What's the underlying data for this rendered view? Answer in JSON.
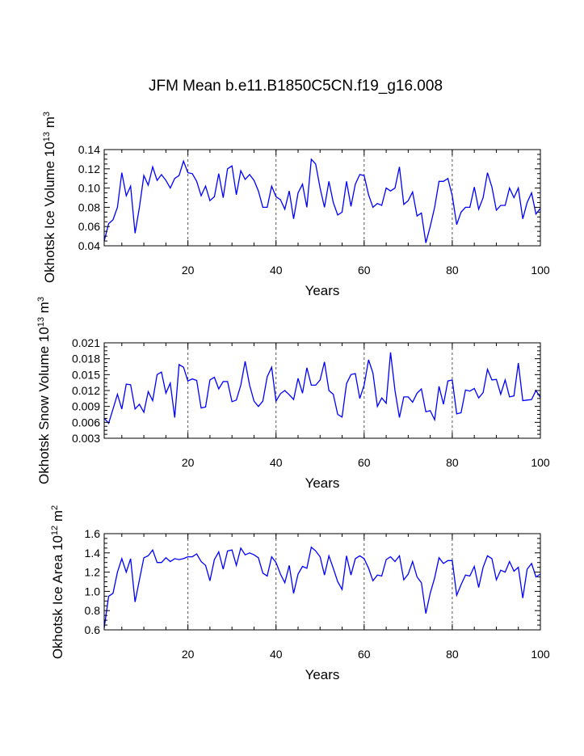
{
  "title": "JFM Mean b.e11.B1850C5CN.f19_g16.008",
  "chart_data": [
    {
      "type": "line",
      "ylabel_main": "Okhotsk Ice Volume 10",
      "ylabel_exp": "13",
      "ylabel_unit": " m",
      "ylabel_unit_exp": "3",
      "xlabel": "Years",
      "xlim": [
        1,
        100
      ],
      "ylim": [
        0.04,
        0.14
      ],
      "yticks": [
        0.04,
        0.06,
        0.08,
        0.1,
        0.12,
        0.14
      ],
      "ytick_labels": [
        "0.04",
        "0.06",
        "0.08",
        "0.10",
        "0.12",
        "0.14"
      ],
      "xticks": [
        20,
        40,
        60,
        80,
        100
      ],
      "xtick_labels": [
        "20",
        "40",
        "60",
        "80",
        "100"
      ],
      "reference_lines_x": [
        20,
        40,
        60,
        80
      ],
      "series": [
        {
          "name": "Okhotsk Ice Volume",
          "x": [
            1,
            2,
            3,
            4,
            5,
            6,
            7,
            8,
            9,
            10,
            11,
            12,
            13,
            14,
            15,
            16,
            17,
            18,
            19,
            20,
            21,
            22,
            23,
            24,
            25,
            26,
            27,
            28,
            29,
            30,
            31,
            32,
            33,
            34,
            35,
            36,
            37,
            38,
            39,
            40,
            41,
            42,
            43,
            44,
            45,
            46,
            47,
            48,
            49,
            50,
            51,
            52,
            53,
            54,
            55,
            56,
            57,
            58,
            59,
            60,
            61,
            62,
            63,
            64,
            65,
            66,
            67,
            68,
            69,
            70,
            71,
            72,
            73,
            74,
            75,
            76,
            77,
            78,
            79,
            80,
            81,
            82,
            83,
            84,
            85,
            86,
            87,
            88,
            89,
            90,
            91,
            92,
            93,
            94,
            95,
            96,
            97,
            98,
            99,
            100
          ],
          "values": [
            0.045,
            0.063,
            0.067,
            0.08,
            0.116,
            0.092,
            0.102,
            0.053,
            0.08,
            0.113,
            0.103,
            0.122,
            0.108,
            0.114,
            0.108,
            0.1,
            0.11,
            0.113,
            0.128,
            0.116,
            0.115,
            0.107,
            0.092,
            0.102,
            0.087,
            0.091,
            0.115,
            0.09,
            0.12,
            0.123,
            0.093,
            0.118,
            0.109,
            0.114,
            0.108,
            0.097,
            0.08,
            0.08,
            0.102,
            0.091,
            0.088,
            0.078,
            0.097,
            0.068,
            0.095,
            0.104,
            0.08,
            0.13,
            0.125,
            0.1,
            0.08,
            0.107,
            0.085,
            0.072,
            0.075,
            0.107,
            0.081,
            0.104,
            0.114,
            0.113,
            0.093,
            0.08,
            0.084,
            0.082,
            0.1,
            0.097,
            0.1,
            0.122,
            0.083,
            0.087,
            0.096,
            0.071,
            0.074,
            0.043,
            0.06,
            0.08,
            0.107,
            0.107,
            0.11,
            0.092,
            0.062,
            0.075,
            0.08,
            0.08,
            0.101,
            0.078,
            0.09,
            0.116,
            0.101,
            0.077,
            0.082,
            0.082,
            0.1,
            0.09,
            0.1,
            0.068,
            0.085,
            0.095,
            0.073,
            0.079
          ]
        }
      ]
    },
    {
      "type": "line",
      "ylabel_main": "Okhotsk Snow Volume 10",
      "ylabel_exp": "13",
      "ylabel_unit": " m",
      "ylabel_unit_exp": "3",
      "xlabel": "Years",
      "xlim": [
        1,
        100
      ],
      "ylim": [
        0.003,
        0.021
      ],
      "yticks": [
        0.003,
        0.006,
        0.009,
        0.012,
        0.015,
        0.018,
        0.021
      ],
      "ytick_labels": [
        "0.003",
        "0.006",
        "0.009",
        "0.012",
        "0.015",
        "0.018",
        "0.021"
      ],
      "xticks": [
        20,
        40,
        60,
        80,
        100
      ],
      "xtick_labels": [
        "20",
        "40",
        "60",
        "80",
        "100"
      ],
      "reference_lines_x": [
        20,
        40,
        60,
        80
      ],
      "series": [
        {
          "name": "Okhotsk Snow Volume",
          "x": [
            1,
            2,
            3,
            4,
            5,
            6,
            7,
            8,
            9,
            10,
            11,
            12,
            13,
            14,
            15,
            16,
            17,
            18,
            19,
            20,
            21,
            22,
            23,
            24,
            25,
            26,
            27,
            28,
            29,
            30,
            31,
            32,
            33,
            34,
            35,
            36,
            37,
            38,
            39,
            40,
            41,
            42,
            43,
            44,
            45,
            46,
            47,
            48,
            49,
            50,
            51,
            52,
            53,
            54,
            55,
            56,
            57,
            58,
            59,
            60,
            61,
            62,
            63,
            64,
            65,
            66,
            67,
            68,
            69,
            70,
            71,
            72,
            73,
            74,
            75,
            76,
            77,
            78,
            79,
            80,
            81,
            82,
            83,
            84,
            85,
            86,
            87,
            88,
            89,
            90,
            91,
            92,
            93,
            94,
            95,
            96,
            97,
            98,
            99,
            100
          ],
          "values": [
            0.0068,
            0.0058,
            0.0085,
            0.0113,
            0.0085,
            0.0132,
            0.0131,
            0.0085,
            0.0094,
            0.0079,
            0.0118,
            0.0101,
            0.015,
            0.0155,
            0.0115,
            0.0134,
            0.0069,
            0.0169,
            0.0164,
            0.0138,
            0.0142,
            0.0139,
            0.0087,
            0.0089,
            0.014,
            0.0145,
            0.0123,
            0.0137,
            0.0137,
            0.0099,
            0.0102,
            0.013,
            0.0175,
            0.013,
            0.01,
            0.009,
            0.01,
            0.0146,
            0.0164,
            0.01,
            0.0114,
            0.012,
            0.0112,
            0.0103,
            0.0143,
            0.0115,
            0.0163,
            0.013,
            0.013,
            0.014,
            0.0174,
            0.012,
            0.0113,
            0.0075,
            0.007,
            0.0133,
            0.015,
            0.0152,
            0.0105,
            0.013,
            0.0178,
            0.0153,
            0.009,
            0.0106,
            0.0096,
            0.0192,
            0.012,
            0.0069,
            0.0108,
            0.0108,
            0.0098,
            0.0115,
            0.0123,
            0.008,
            0.0082,
            0.0065,
            0.0128,
            0.0094,
            0.0138,
            0.014,
            0.0076,
            0.0078,
            0.0121,
            0.0119,
            0.0124,
            0.0106,
            0.0116,
            0.016,
            0.014,
            0.0141,
            0.0113,
            0.014,
            0.0108,
            0.011,
            0.0172,
            0.0101,
            0.0102,
            0.0103,
            0.012,
            0.0107
          ]
        }
      ]
    },
    {
      "type": "line",
      "ylabel_main": "Okhotsk Ice Area 10",
      "ylabel_exp": "12",
      "ylabel_unit": " m",
      "ylabel_unit_exp": "2",
      "xlabel": "Years",
      "xlim": [
        1,
        100
      ],
      "ylim": [
        0.6,
        1.6
      ],
      "yticks": [
        0.6,
        0.8,
        1.0,
        1.2,
        1.4,
        1.6
      ],
      "ytick_labels": [
        "0.6",
        "0.8",
        "1.0",
        "1.2",
        "1.4",
        "1.6"
      ],
      "xticks": [
        20,
        40,
        60,
        80,
        100
      ],
      "xtick_labels": [
        "20",
        "40",
        "60",
        "80",
        "100"
      ],
      "reference_lines_x": [
        20,
        40,
        60,
        80
      ],
      "series": [
        {
          "name": "Okhotsk Ice Area",
          "x": [
            1,
            2,
            3,
            4,
            5,
            6,
            7,
            8,
            9,
            10,
            11,
            12,
            13,
            14,
            15,
            16,
            17,
            18,
            19,
            20,
            21,
            22,
            23,
            24,
            25,
            26,
            27,
            28,
            29,
            30,
            31,
            32,
            33,
            34,
            35,
            36,
            37,
            38,
            39,
            40,
            41,
            42,
            43,
            44,
            45,
            46,
            47,
            48,
            49,
            50,
            51,
            52,
            53,
            54,
            55,
            56,
            57,
            58,
            59,
            60,
            61,
            62,
            63,
            64,
            65,
            66,
            67,
            68,
            69,
            70,
            71,
            72,
            73,
            74,
            75,
            76,
            77,
            78,
            79,
            80,
            81,
            82,
            83,
            84,
            85,
            86,
            87,
            88,
            89,
            90,
            91,
            92,
            93,
            94,
            95,
            96,
            97,
            98,
            99,
            100
          ],
          "values": [
            0.62,
            0.95,
            0.98,
            1.2,
            1.34,
            1.2,
            1.34,
            0.89,
            1.12,
            1.35,
            1.37,
            1.43,
            1.3,
            1.3,
            1.35,
            1.31,
            1.34,
            1.33,
            1.34,
            1.36,
            1.36,
            1.39,
            1.31,
            1.27,
            1.11,
            1.33,
            1.41,
            1.23,
            1.42,
            1.43,
            1.27,
            1.45,
            1.38,
            1.4,
            1.38,
            1.35,
            1.19,
            1.16,
            1.36,
            1.3,
            1.18,
            1.09,
            1.27,
            0.98,
            1.18,
            1.26,
            1.24,
            1.46,
            1.42,
            1.36,
            1.17,
            1.37,
            1.24,
            1.1,
            1.02,
            1.37,
            1.17,
            1.34,
            1.37,
            1.34,
            1.24,
            1.11,
            1.17,
            1.16,
            1.33,
            1.36,
            1.31,
            1.37,
            1.12,
            1.18,
            1.31,
            1.15,
            1.09,
            0.77,
            0.98,
            1.14,
            1.35,
            1.29,
            1.32,
            1.32,
            0.96,
            1.07,
            1.17,
            1.16,
            1.26,
            1.04,
            1.25,
            1.37,
            1.34,
            1.12,
            1.22,
            1.2,
            1.31,
            1.21,
            1.25,
            0.93,
            1.23,
            1.29,
            1.15,
            1.18
          ]
        }
      ]
    }
  ]
}
